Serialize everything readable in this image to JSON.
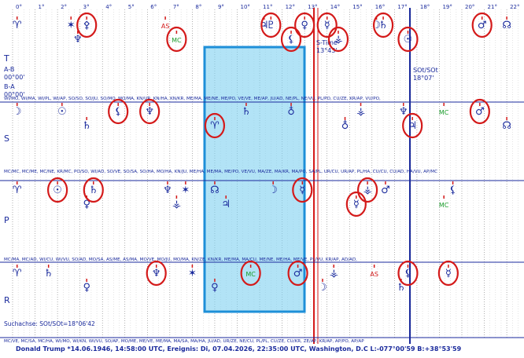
{
  "degree_scale": [
    "0°",
    "1°",
    "2°",
    "3°",
    "4°",
    "5°",
    "6°",
    "7°",
    "8°",
    "9°",
    "10°",
    "11°",
    "12°",
    "13°",
    "14°",
    "15°",
    "16°",
    "17°",
    "18°",
    "19°",
    "20°",
    "21°",
    "22°"
  ],
  "section_labels": [
    "T",
    "S",
    "P",
    "R"
  ],
  "aries_glyph": "♈",
  "left_info": {
    "ab": "A-B",
    "ab_value": "00°00'",
    "ba": "B-A",
    "ba_value": "00°00'"
  },
  "stime": {
    "label": "S-Time",
    "value": "13°43'"
  },
  "sot": {
    "label": "SOt/SOt",
    "value": "18°07'"
  },
  "pair_rows": {
    "t": "WI/MO, WI/MA, WI/PL, WI/AP, SO/SO, SO/JU, SO/MO, MO/MA, KN/UR, KN/HA, KN/KR, ME/MA, ME/NE, ME/PO, VE/VE, ME/AP, JU/AD, NE/PL, NE/VU, PL/PO, CU/ZE, KR/AP, VU/PO,",
    "s": "MC/MC, MC/ME, MC/NE, KR/MC, PO/SO, WI/AD, SO/VE, SO/SA, SO/HA, MO/HA, KN/JU, ME/HA, ME/MA, ME/PO, VE/VU, MA/ZE, MA/KR, MA/PO, SA/PL, UR/CU, UR/AP, PL/HA, CU/CU, CU/AD, HA/VU, AP/MC",
    "p": "MC/MA, MC/AD, WI/CU, WI/VU, SO/AD, MO/SA, AS/ME, AS/MA, MO/VE, MO/JU, MO/MA, KN/ZE, KN/KR, ME/MA, MA/CU, ME/NE, ME/HA, ME/VE, PL/VU, KR/AP, AD/AD,",
    "r": "MC/VE, MC/SA, MC/HA, WI/MO, WI/KN, WI/VU, SO/AP, MO/ME, ME/VE, ME/MA, MA/SA, MA/HA, JU/AD, UR/ZE, NE/CU, PL/PL, CU/ZE, CU/KR, ZE/AP, KR/AP, AP/PO, AP/AP"
  },
  "glyphs": {
    "sun": "☉",
    "moon": "☽",
    "mercury": "☿",
    "venus": "♀",
    "mars": "♂",
    "jupiter": "♃",
    "saturn": "♄",
    "uranus": "♅",
    "neptune": "♆",
    "pluto": "♇",
    "node": "☊",
    "cupido": "♁",
    "poseidon": "⚴",
    "hades": "✶",
    "zeus": "⚶",
    "kronos": "⚵",
    "apollon": "⚷",
    "admetos": "⚳",
    "vulkanus": "⚸",
    "cross": "✠"
  },
  "markers": {
    "as": "AS",
    "mc": "MC"
  },
  "row_t": [
    {
      "g": "aries",
      "d": 0.2,
      "red": false
    },
    {
      "g": "hades",
      "d": 2.6,
      "red": false
    },
    {
      "g": "neptune",
      "d": 2.9,
      "red": false
    },
    {
      "g": "poseidon",
      "d": 3.3,
      "red": true
    },
    {
      "g": "as",
      "d": 6.8,
      "red": false
    },
    {
      "g": "mc",
      "d": 7.3,
      "red": true
    },
    {
      "g": "jupiter",
      "d": 11.2,
      "red": false
    },
    {
      "g": "pluto",
      "d": 11.5,
      "red": true
    },
    {
      "g": "vulkanus",
      "d": 12.4,
      "red": true
    },
    {
      "g": "venus",
      "d": 13.0,
      "red": true
    },
    {
      "g": "mercury",
      "d": 14.0,
      "red": true
    },
    {
      "g": "zeus",
      "d": 14.5,
      "red": true
    },
    {
      "g": "moon",
      "d": 16.2,
      "red": false
    },
    {
      "g": "saturn",
      "d": 16.5,
      "red": true
    },
    {
      "g": "sun",
      "d": 17.6,
      "red": true
    },
    {
      "g": "mars",
      "d": 20.9,
      "red": true
    },
    {
      "g": "node",
      "d": 22.0,
      "red": false
    }
  ],
  "row_s": [
    {
      "g": "moon",
      "d": 0.2,
      "red": false
    },
    {
      "g": "sun",
      "d": 2.2,
      "red": false
    },
    {
      "g": "saturn",
      "d": 3.3,
      "red": false
    },
    {
      "g": "neptune",
      "d": 6.1,
      "red": true
    },
    {
      "g": "vulkanus",
      "d": 4.7,
      "red": true
    },
    {
      "g": "aries",
      "d": 9.0,
      "red": true
    },
    {
      "g": "saturn",
      "d": 10.4,
      "red": false
    },
    {
      "g": "cupido",
      "d": 12.4,
      "red": false
    },
    {
      "g": "cupido",
      "d": 14.8,
      "red": false
    },
    {
      "g": "zeus",
      "d": 15.5,
      "red": false
    },
    {
      "g": "neptune",
      "d": 17.4,
      "red": false
    },
    {
      "g": "jupiter",
      "d": 17.8,
      "red": true
    },
    {
      "g": "mc",
      "d": 19.2,
      "red": false
    },
    {
      "g": "mars",
      "d": 20.8,
      "red": true
    },
    {
      "g": "node",
      "d": 22.0,
      "red": false
    }
  ],
  "row_p": [
    {
      "g": "aries",
      "d": 0.2,
      "red": false
    },
    {
      "g": "sun",
      "d": 2.0,
      "red": true
    },
    {
      "g": "venus",
      "d": 3.3,
      "red": false
    },
    {
      "g": "saturn",
      "d": 3.6,
      "red": true
    },
    {
      "g": "neptune",
      "d": 6.9,
      "red": false
    },
    {
      "g": "zeus",
      "d": 7.3,
      "red": false
    },
    {
      "g": "hades",
      "d": 7.7,
      "red": false
    },
    {
      "g": "node",
      "d": 9.0,
      "red": false
    },
    {
      "g": "jupiter",
      "d": 9.5,
      "red": false
    },
    {
      "g": "moon",
      "d": 11.6,
      "red": false
    },
    {
      "g": "mercury",
      "d": 12.9,
      "red": true
    },
    {
      "g": "mercury",
      "d": 15.3,
      "red": true
    },
    {
      "g": "zeus",
      "d": 15.8,
      "red": true
    },
    {
      "g": "mars",
      "d": 16.6,
      "red": false
    },
    {
      "g": "mc",
      "d": 19.2,
      "red": false
    },
    {
      "g": "vulkanus",
      "d": 19.6,
      "red": false
    }
  ],
  "row_r": [
    {
      "g": "aries",
      "d": 0.2,
      "red": false
    },
    {
      "g": "saturn",
      "d": 1.6,
      "red": false
    },
    {
      "g": "venus",
      "d": 3.3,
      "red": false
    },
    {
      "g": "neptune",
      "d": 6.4,
      "red": true
    },
    {
      "g": "hades",
      "d": 8.0,
      "red": false
    },
    {
      "g": "venus",
      "d": 9.0,
      "red": false
    },
    {
      "g": "mc",
      "d": 10.6,
      "red": true
    },
    {
      "g": "mars",
      "d": 12.7,
      "red": true
    },
    {
      "g": "moon",
      "d": 13.8,
      "red": false
    },
    {
      "g": "zeus",
      "d": 14.3,
      "red": false
    },
    {
      "g": "as",
      "d": 16.1,
      "red": false
    },
    {
      "g": "saturn",
      "d": 17.3,
      "red": false
    },
    {
      "g": "vulkanus",
      "d": 17.6,
      "red": true
    },
    {
      "g": "mercury",
      "d": 19.4,
      "red": true
    }
  ],
  "suchachse": "Suchachse: SOt/SOt=18°06'42",
  "footer_pairs": "MC/VE, MC/SA, MC/HA, WI/MO, WI/KN, WI/VU, SO/AP, MO/ME, ME/VE, ME/MA, MA/SA, MA/HA, JU/AD, UR/ZE, NE/CU, PL/PL, CU/ZE, CU/KR, ZE/AP, KR/AP, AP/PO, AP/AP",
  "footer_info": "Donald Trump  *14.06.1946, 14:58:00 UTC, Ereignis: Di, 07.04.2026, 22:35:00 UTC, Washington, D.C L:-077°00'59 B:+38°53'59",
  "colors": {
    "blue": "#1a2a9c",
    "red": "#d41a1a",
    "mc_green": "#1a9c2a",
    "highlight": "#7fd0f0",
    "highlight_border": "#1e8fd8",
    "circle": "#d41a1a"
  }
}
